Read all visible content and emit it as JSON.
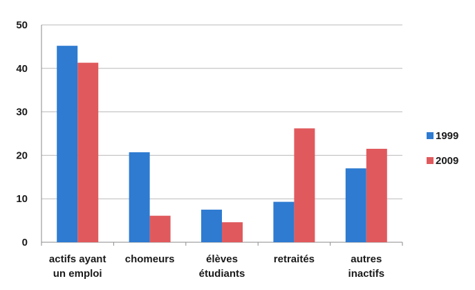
{
  "chart_data": {
    "type": "bar",
    "title": "",
    "xlabel": "",
    "ylabel": "",
    "ylim": [
      0,
      50
    ],
    "yticks": [
      0,
      10,
      20,
      30,
      40,
      50
    ],
    "grid": true,
    "legend_position": "right",
    "categories": [
      [
        "actifs ayant",
        "un emploi"
      ],
      [
        "chomeurs"
      ],
      [
        "élèves",
        "étudiants"
      ],
      [
        "retraités"
      ],
      [
        "autres",
        "inactifs"
      ]
    ],
    "series": [
      {
        "name": "1999",
        "color": "#2e7bd1",
        "values": [
          45.2,
          20.7,
          7.5,
          9.3,
          17.0
        ]
      },
      {
        "name": "2009",
        "color": "#e05a5d",
        "values": [
          41.3,
          6.1,
          4.6,
          26.2,
          21.5
        ]
      }
    ]
  }
}
